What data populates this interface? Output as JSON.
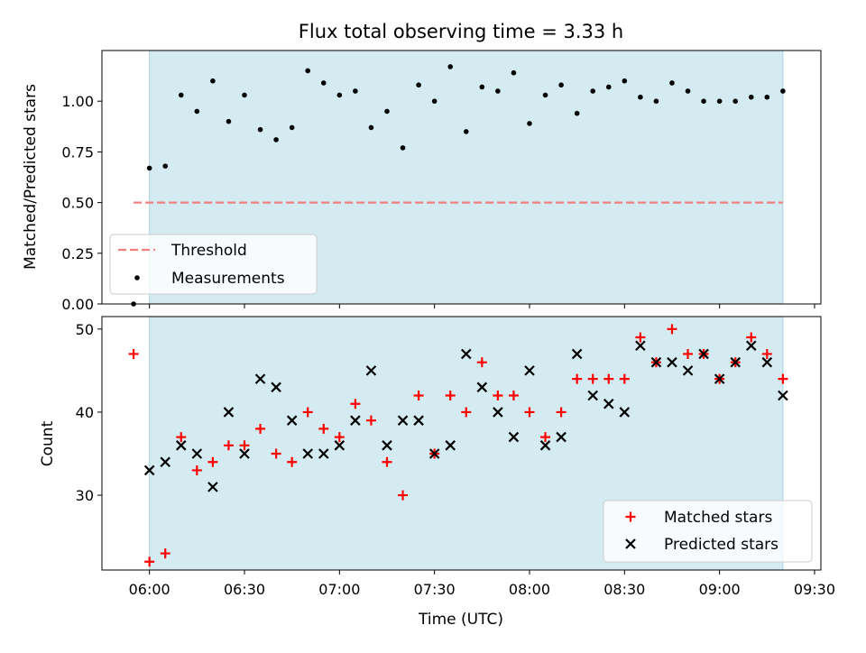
{
  "chart_data": [
    {
      "type": "scatter",
      "title": "Flux total observing time = 3.33 h",
      "xlabel": "",
      "ylabel": "Matched/Predicted stars",
      "x_unit": "time (UTC)",
      "xlim": [
        "05:45",
        "09:32"
      ],
      "ylim": [
        0,
        1.25
      ],
      "yticks": [
        "0.00",
        "0.25",
        "0.50",
        "0.75",
        "1.00"
      ],
      "shaded_range": [
        "06:00",
        "09:20"
      ],
      "shade_color": "#d4ebf2",
      "legend_placement": "lower-left",
      "threshold": {
        "name": "Threshold",
        "y": 0.5,
        "x_range": [
          "05:55",
          "09:20"
        ],
        "color": "#f08080",
        "style": "dashed"
      },
      "series": [
        {
          "name": "Measurements",
          "marker": "dot",
          "color": "#000000",
          "points": [
            [
              "05:55",
              0.0
            ],
            [
              "06:00",
              0.67
            ],
            [
              "06:05",
              0.68
            ],
            [
              "06:10",
              1.03
            ],
            [
              "06:15",
              0.95
            ],
            [
              "06:20",
              1.1
            ],
            [
              "06:25",
              0.9
            ],
            [
              "06:30",
              1.03
            ],
            [
              "06:35",
              0.86
            ],
            [
              "06:40",
              0.81
            ],
            [
              "06:45",
              0.87
            ],
            [
              "06:50",
              1.15
            ],
            [
              "06:55",
              1.09
            ],
            [
              "07:00",
              1.03
            ],
            [
              "07:05",
              1.05
            ],
            [
              "07:10",
              0.87
            ],
            [
              "07:15",
              0.95
            ],
            [
              "07:20",
              0.77
            ],
            [
              "07:25",
              1.08
            ],
            [
              "07:30",
              1.0
            ],
            [
              "07:35",
              1.17
            ],
            [
              "07:40",
              0.85
            ],
            [
              "07:45",
              1.07
            ],
            [
              "07:50",
              1.05
            ],
            [
              "07:55",
              1.14
            ],
            [
              "08:00",
              0.89
            ],
            [
              "08:05",
              1.03
            ],
            [
              "08:10",
              1.08
            ],
            [
              "08:15",
              0.94
            ],
            [
              "08:20",
              1.05
            ],
            [
              "08:25",
              1.07
            ],
            [
              "08:30",
              1.1
            ],
            [
              "08:35",
              1.02
            ],
            [
              "08:40",
              1.0
            ],
            [
              "08:45",
              1.09
            ],
            [
              "08:50",
              1.05
            ],
            [
              "08:55",
              1.0
            ],
            [
              "09:00",
              1.0
            ],
            [
              "09:05",
              1.0
            ],
            [
              "09:10",
              1.02
            ],
            [
              "09:15",
              1.02
            ],
            [
              "09:20",
              1.05
            ]
          ]
        }
      ]
    },
    {
      "type": "scatter",
      "title": "",
      "xlabel": "Time (UTC)",
      "ylabel": "Count",
      "x_unit": "time (UTC)",
      "xlim": [
        "05:45",
        "09:32"
      ],
      "ylim": [
        21,
        51.5
      ],
      "xticks": [
        "06:00",
        "06:30",
        "07:00",
        "07:30",
        "08:00",
        "08:30",
        "09:00",
        "09:30"
      ],
      "yticks": [
        "30",
        "40",
        "50"
      ],
      "shaded_range": [
        "06:00",
        "09:20"
      ],
      "shade_color": "#d4ebf2",
      "legend_placement": "lower-right",
      "series": [
        {
          "name": "Matched stars",
          "marker": "plus",
          "color": "#ff0000",
          "points": [
            [
              "05:55",
              47
            ],
            [
              "06:00",
              22
            ],
            [
              "06:05",
              23
            ],
            [
              "06:10",
              37
            ],
            [
              "06:15",
              33
            ],
            [
              "06:20",
              34
            ],
            [
              "06:25",
              36
            ],
            [
              "06:30",
              36
            ],
            [
              "06:35",
              38
            ],
            [
              "06:40",
              35
            ],
            [
              "06:45",
              34
            ],
            [
              "06:50",
              40
            ],
            [
              "06:55",
              38
            ],
            [
              "07:00",
              37
            ],
            [
              "07:05",
              41
            ],
            [
              "07:10",
              39
            ],
            [
              "07:15",
              34
            ],
            [
              "07:20",
              30
            ],
            [
              "07:25",
              42
            ],
            [
              "07:30",
              35
            ],
            [
              "07:35",
              42
            ],
            [
              "07:40",
              40
            ],
            [
              "07:45",
              46
            ],
            [
              "07:50",
              42
            ],
            [
              "07:55",
              42
            ],
            [
              "08:00",
              40
            ],
            [
              "08:05",
              37
            ],
            [
              "08:10",
              40
            ],
            [
              "08:15",
              44
            ],
            [
              "08:20",
              44
            ],
            [
              "08:25",
              44
            ],
            [
              "08:30",
              44
            ],
            [
              "08:35",
              49
            ],
            [
              "08:40",
              46
            ],
            [
              "08:45",
              50
            ],
            [
              "08:50",
              47
            ],
            [
              "08:55",
              47
            ],
            [
              "09:00",
              44
            ],
            [
              "09:05",
              46
            ],
            [
              "09:10",
              49
            ],
            [
              "09:15",
              47
            ],
            [
              "09:20",
              44
            ]
          ]
        },
        {
          "name": "Predicted stars",
          "marker": "x",
          "color": "#000000",
          "points": [
            [
              "06:00",
              33
            ],
            [
              "06:05",
              34
            ],
            [
              "06:10",
              36
            ],
            [
              "06:15",
              35
            ],
            [
              "06:20",
              31
            ],
            [
              "06:25",
              40
            ],
            [
              "06:30",
              35
            ],
            [
              "06:35",
              44
            ],
            [
              "06:40",
              43
            ],
            [
              "06:45",
              39
            ],
            [
              "06:50",
              35
            ],
            [
              "06:55",
              35
            ],
            [
              "07:00",
              36
            ],
            [
              "07:05",
              39
            ],
            [
              "07:10",
              45
            ],
            [
              "07:15",
              36
            ],
            [
              "07:20",
              39
            ],
            [
              "07:25",
              39
            ],
            [
              "07:30",
              35
            ],
            [
              "07:35",
              36
            ],
            [
              "07:40",
              47
            ],
            [
              "07:45",
              43
            ],
            [
              "07:50",
              40
            ],
            [
              "07:55",
              37
            ],
            [
              "08:00",
              45
            ],
            [
              "08:05",
              36
            ],
            [
              "08:10",
              37
            ],
            [
              "08:15",
              47
            ],
            [
              "08:20",
              42
            ],
            [
              "08:25",
              41
            ],
            [
              "08:30",
              40
            ],
            [
              "08:35",
              48
            ],
            [
              "08:40",
              46
            ],
            [
              "08:45",
              46
            ],
            [
              "08:50",
              45
            ],
            [
              "08:55",
              47
            ],
            [
              "09:00",
              44
            ],
            [
              "09:05",
              46
            ],
            [
              "09:10",
              48
            ],
            [
              "09:15",
              46
            ],
            [
              "09:20",
              42
            ]
          ]
        }
      ]
    }
  ]
}
